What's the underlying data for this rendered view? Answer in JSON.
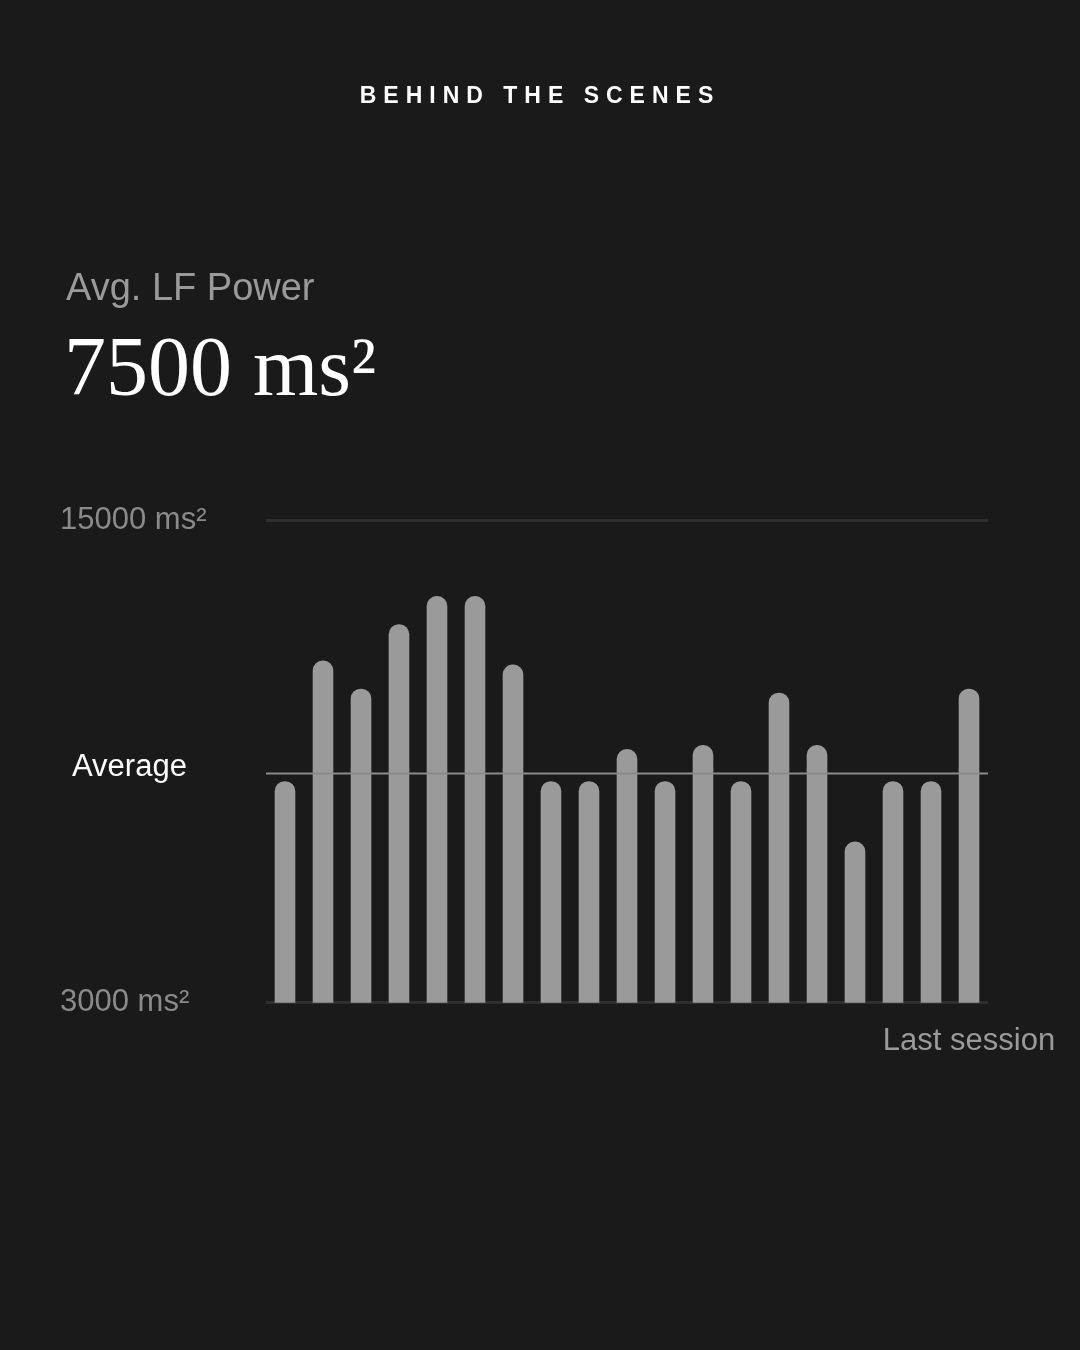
{
  "chart_data": {
    "type": "bar",
    "title": "BEHIND THE SCENES",
    "subtitle": "Avg. LF Power",
    "annotations": [
      "7500 ms²"
    ],
    "categories": [
      null,
      null,
      null,
      null,
      null,
      null,
      null,
      null,
      null,
      null,
      null,
      null,
      null,
      null,
      null,
      null,
      null,
      null,
      "Last session"
    ],
    "values": [
      8500,
      11500,
      10800,
      12400,
      13100,
      13100,
      11400,
      8500,
      8500,
      9300,
      8500,
      9400,
      8500,
      10700,
      9400,
      7000,
      8500,
      8500,
      10800
    ],
    "color": "#9a9a9a",
    "ylim": [
      3000,
      15000
    ],
    "yticks": [
      {
        "value": 3000,
        "label": "3000 ms²"
      },
      {
        "value": 15000,
        "label": "15000 ms²"
      }
    ],
    "grid": "y",
    "ref_lines": [
      {
        "axis": "y",
        "value": 8700,
        "label": "Average",
        "color": "#8a8a8a"
      }
    ]
  }
}
